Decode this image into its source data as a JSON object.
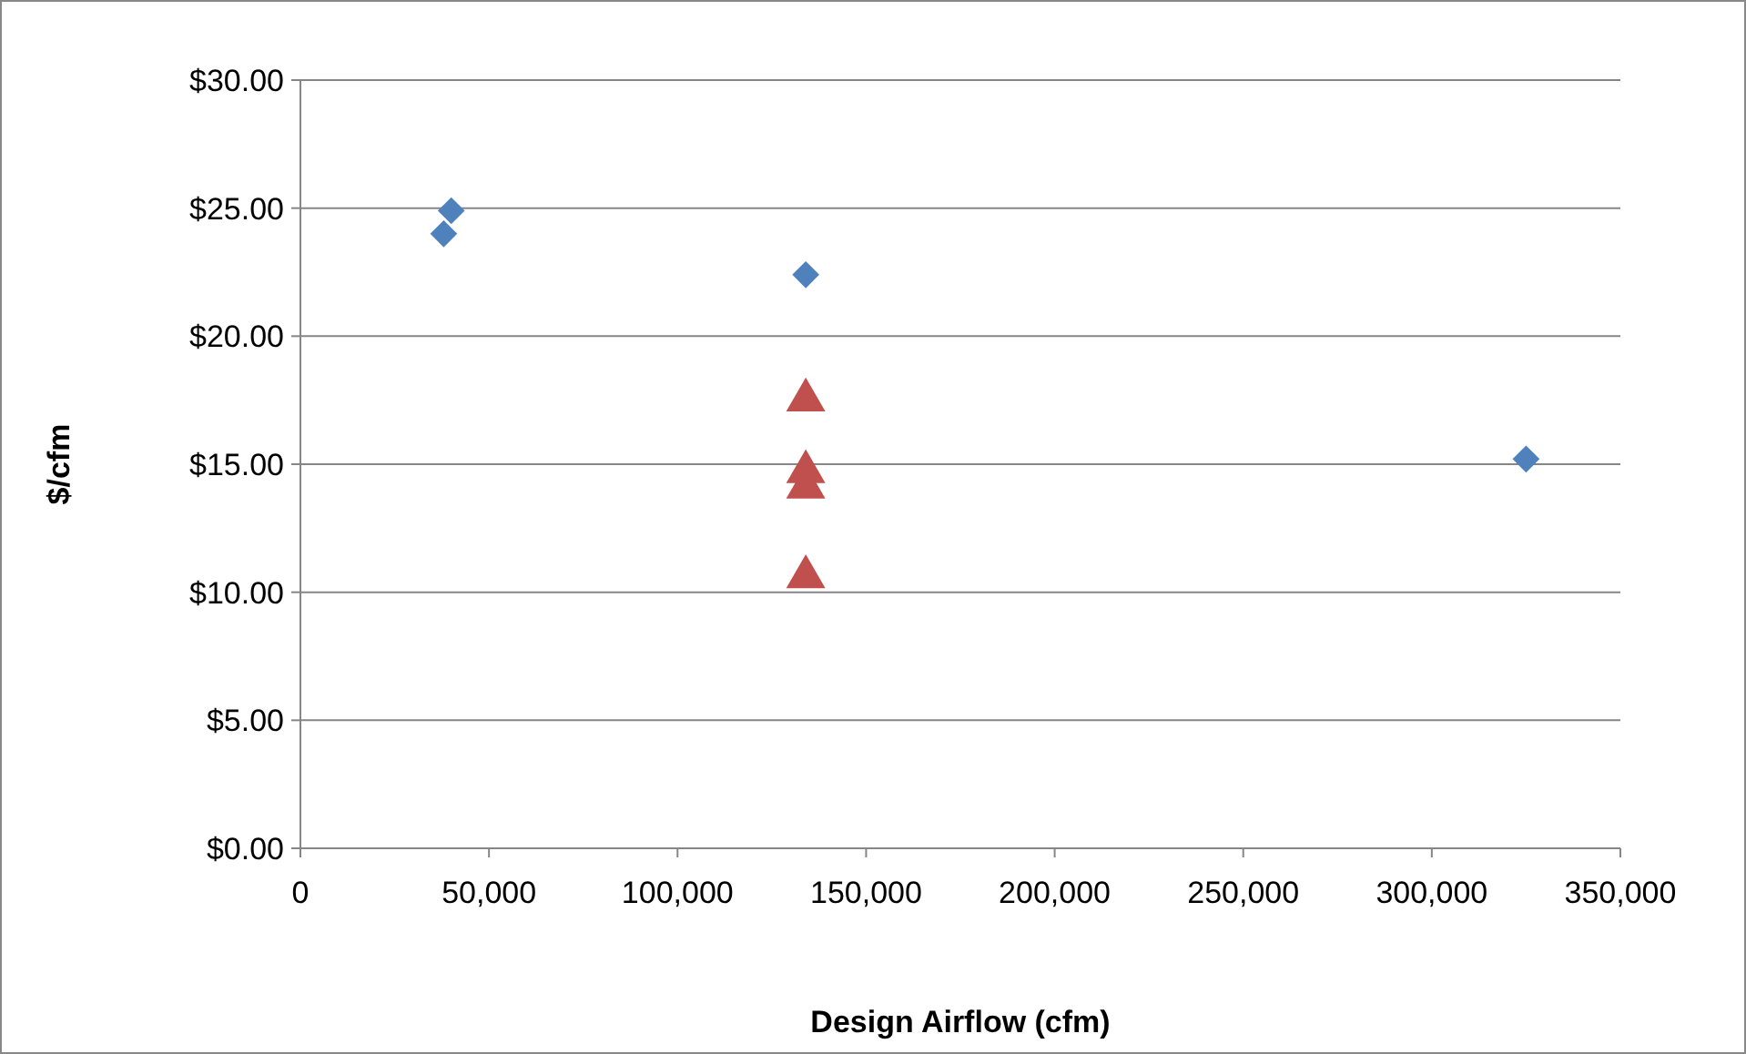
{
  "chart_data": {
    "type": "scatter",
    "xlabel": "Design Airflow (cfm)",
    "ylabel": "$/cfm",
    "xlim": [
      0,
      350000
    ],
    "xticks": [
      {
        "value": 0,
        "label": "0"
      },
      {
        "value": 50000,
        "label": "50,000"
      },
      {
        "value": 100000,
        "label": "100,000"
      },
      {
        "value": 150000,
        "label": "150,000"
      },
      {
        "value": 200000,
        "label": "200,000"
      },
      {
        "value": 250000,
        "label": "250,000"
      },
      {
        "value": 300000,
        "label": "300,000"
      },
      {
        "value": 350000,
        "label": "350,000"
      }
    ],
    "ylim": [
      0,
      30
    ],
    "yticks": [
      {
        "value": 0,
        "label": "$0.00"
      },
      {
        "value": 5,
        "label": "$5.00"
      },
      {
        "value": 10,
        "label": "$10.00"
      },
      {
        "value": 15,
        "label": "$15.00"
      },
      {
        "value": 20,
        "label": "$20.00"
      },
      {
        "value": 25,
        "label": "$25.00"
      },
      {
        "value": 30,
        "label": "$30.00"
      }
    ],
    "grid": "y",
    "series": [
      {
        "color": "#4f81bd",
        "marker": "diamond",
        "x": [
          38000,
          40000,
          134000,
          325000
        ],
        "values": [
          24.0,
          24.9,
          22.4,
          15.2
        ]
      },
      {
        "color": "#c0504d",
        "marker": "triangle",
        "x": [
          134000,
          134000,
          134000,
          134000
        ],
        "values": [
          17.5,
          14.7,
          14.1,
          10.6
        ]
      }
    ]
  }
}
